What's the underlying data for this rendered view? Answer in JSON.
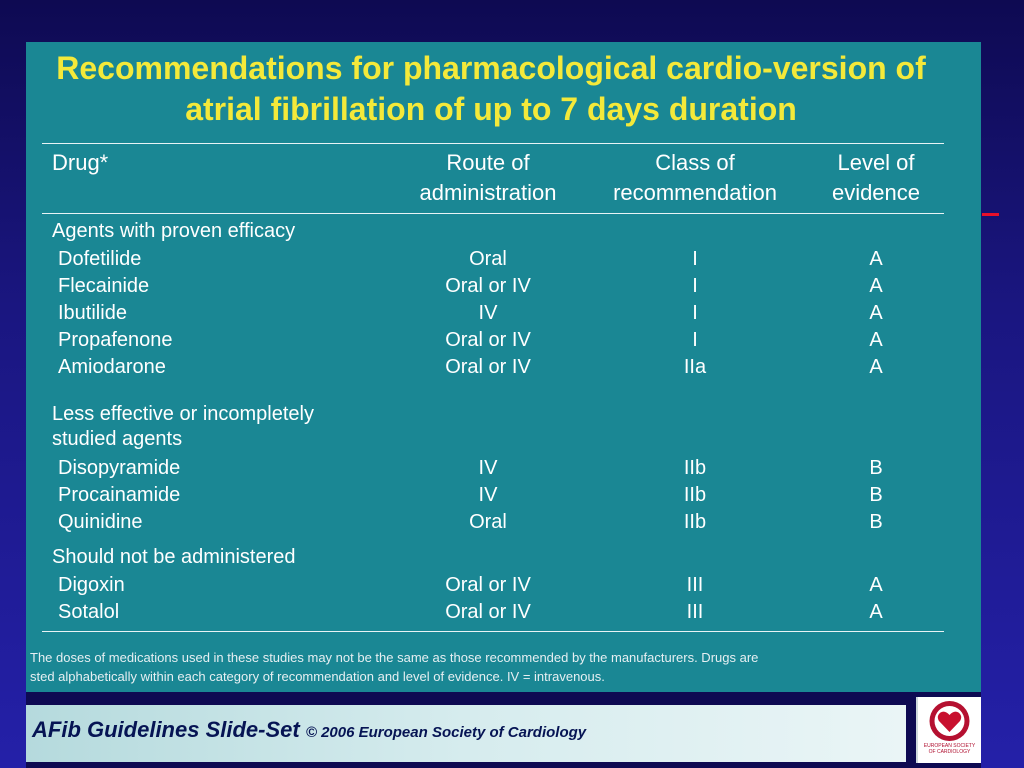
{
  "title": "Recommendations for pharmacological cardio-version of atrial fibrillation of up to 7 days duration",
  "columns": {
    "drug": "Drug*",
    "route_line1": "Route of",
    "route_line2": "administration",
    "class_line1": "Class of",
    "class_line2": "recommendation",
    "level_line1": "Level of",
    "level_line2": "evidence"
  },
  "categories": [
    {
      "lines": [
        "Agents with proven efficacy"
      ]
    },
    {
      "lines": [
        "Less effective or incompletely",
        "studied agents"
      ]
    },
    {
      "lines": [
        "Should not be administered"
      ]
    }
  ],
  "rows": [
    {
      "drug": "Dofetilide",
      "route": "Oral",
      "class": "I",
      "level": "A"
    },
    {
      "drug": "Flecainide",
      "route": "Oral or IV",
      "class": "I",
      "level": "A"
    },
    {
      "drug": "Ibutilide",
      "route": "IV",
      "class": "I",
      "level": "A"
    },
    {
      "drug": "Propafenone",
      "route": "Oral or IV",
      "class": "I",
      "level": "A"
    },
    {
      "drug": "Amiodarone",
      "route": "Oral or IV",
      "class": "IIa",
      "level": "A"
    },
    {
      "drug": "Disopyramide",
      "route": "IV",
      "class": "IIb",
      "level": "B"
    },
    {
      "drug": "Procainamide",
      "route": "IV",
      "class": "IIb",
      "level": "B"
    },
    {
      "drug": "Quinidine",
      "route": "Oral",
      "class": "IIb",
      "level": "B"
    },
    {
      "drug": "Digoxin",
      "route": "Oral or IV",
      "class": "III",
      "level": "A"
    },
    {
      "drug": "Sotalol",
      "route": "Oral or IV",
      "class": "III",
      "level": "A"
    }
  ],
  "footnote": {
    "line1": "The doses of medications used in these studies may not be the same as those recommended by the manufacturers. Drugs are",
    "line2": "sted alphabetically within each category of recommendation and level of evidence. IV = intravenous."
  },
  "footer": {
    "title": "AFib Guidelines Slide-Set",
    "copyright": "© 2006 European Society of Cardiology"
  },
  "logo": {
    "text": "EUROPEAN SOCIETY OF CARDIOLOGY",
    "icon": "heart-icon"
  },
  "colors": {
    "background": "#1a1680",
    "panel": "#1a8794",
    "title": "#f4e93a",
    "text": "#ffffff",
    "footer_text": "#061454",
    "accent_red": "#e8102a"
  }
}
